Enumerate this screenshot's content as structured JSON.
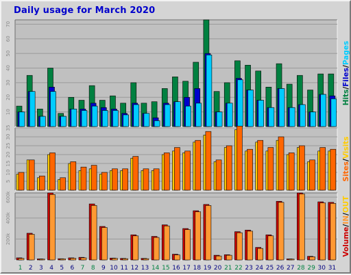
{
  "title": "Daily usage for March 2020",
  "colors": {
    "hits": "#008040",
    "files": "#0000cc",
    "pages": "#00ccff",
    "visits": "#ffcc00",
    "sites": "#ff6600",
    "volume": "#cc0000",
    "kb_in": "#ff9933",
    "kb_out": "#ffcc00",
    "weekend": "#008040",
    "weekday": "#000080",
    "title": "#0000cc",
    "panel": "#c0c0c0",
    "frame": "#d4d4d4"
  },
  "side_labels": {
    "panel1": [
      {
        "text": "Hits",
        "color": "#008040"
      },
      {
        "text": "/",
        "color": "#000000"
      },
      {
        "text": "Files",
        "color": "#0000cc"
      },
      {
        "text": "/",
        "color": "#000000"
      },
      {
        "text": "Pages",
        "color": "#00ccff"
      }
    ],
    "panel2": [
      {
        "text": "Sites",
        "color": "#ff6600"
      },
      {
        "text": "/",
        "color": "#000000"
      },
      {
        "text": "Visits",
        "color": "#ffcc00"
      }
    ],
    "panel3": [
      {
        "text": "Volume",
        "color": "#cc0000"
      },
      {
        "text": "/",
        "color": "#000000"
      },
      {
        "text": "IN",
        "color": "#ff9933"
      },
      {
        "text": "/",
        "color": "#000000"
      },
      {
        "text": "OUT",
        "color": "#ffcc00"
      }
    ]
  },
  "chart_data": [
    {
      "type": "bar",
      "categories": [
        "1",
        "2",
        "3",
        "4",
        "5",
        "6",
        "7",
        "8",
        "9",
        "10",
        "11",
        "12",
        "13",
        "14",
        "15",
        "16",
        "17",
        "18",
        "19",
        "20",
        "21",
        "22",
        "23",
        "24",
        "25",
        "26",
        "27",
        "28",
        "29",
        "30",
        "31"
      ],
      "weekend_days": [
        "1",
        "7",
        "8",
        "14",
        "15",
        "21",
        "22",
        "28",
        "29"
      ],
      "y_ticks": [
        10,
        20,
        30,
        40,
        50,
        60,
        70
      ],
      "ylim": [
        0,
        73
      ],
      "series": [
        {
          "name": "Hits",
          "values": [
            14,
            35,
            12,
            40,
            9,
            20,
            18,
            28,
            18,
            21,
            16,
            30,
            16,
            17,
            26,
            34,
            31,
            44,
            73,
            24,
            30,
            45,
            42,
            38,
            27,
            43,
            29,
            35,
            25,
            36,
            36
          ]
        },
        {
          "name": "Files",
          "values": [
            10,
            24,
            7,
            27,
            7,
            12,
            12,
            16,
            13,
            12,
            9,
            16,
            9,
            6,
            16,
            17,
            20,
            26,
            50,
            10,
            16,
            33,
            25,
            18,
            13,
            26,
            13,
            15,
            10,
            22,
            21
          ]
        },
        {
          "name": "Pages",
          "values": [
            10,
            24,
            7,
            24,
            7,
            12,
            11,
            14,
            11,
            11,
            8,
            15,
            9,
            4,
            15,
            17,
            14,
            16,
            49,
            10,
            16,
            32,
            25,
            18,
            13,
            26,
            13,
            15,
            10,
            22,
            19
          ]
        }
      ]
    },
    {
      "type": "bar",
      "categories": [
        "1",
        "2",
        "3",
        "4",
        "5",
        "6",
        "7",
        "8",
        "9",
        "10",
        "11",
        "12",
        "13",
        "14",
        "15",
        "16",
        "17",
        "18",
        "19",
        "20",
        "21",
        "22",
        "23",
        "24",
        "25",
        "26",
        "27",
        "28",
        "29",
        "30",
        "31"
      ],
      "y_ticks": [
        5,
        10,
        15,
        20,
        25,
        30,
        35
      ],
      "ylim": [
        0,
        35
      ],
      "series": [
        {
          "name": "Visits",
          "values": [
            9,
            17,
            7,
            20,
            6,
            15,
            11,
            12,
            9,
            11,
            11,
            18,
            11,
            11,
            20,
            22,
            21,
            27,
            31,
            16,
            24,
            34,
            22,
            27,
            22,
            28,
            20,
            24,
            16,
            22,
            22
          ]
        },
        {
          "name": "Sites",
          "values": [
            10,
            17,
            8,
            21,
            7,
            16,
            13,
            14,
            10,
            12,
            12,
            19,
            12,
            12,
            21,
            24,
            22,
            28,
            33,
            17,
            25,
            36,
            23,
            28,
            24,
            30,
            21,
            25,
            17,
            24,
            23
          ]
        }
      ]
    },
    {
      "type": "bar",
      "categories": [
        "1",
        "2",
        "3",
        "4",
        "5",
        "6",
        "7",
        "8",
        "9",
        "10",
        "11",
        "12",
        "13",
        "14",
        "15",
        "16",
        "17",
        "18",
        "19",
        "20",
        "21",
        "22",
        "23",
        "24",
        "25",
        "26",
        "27",
        "28",
        "29",
        "30",
        "31"
      ],
      "y_ticks": [
        200,
        400,
        600
      ],
      "y_tick_labels": [
        "200k",
        "400k",
        "600k"
      ],
      "y_unit": "k",
      "ylim": [
        0,
        640
      ],
      "series": [
        {
          "name": "Volume",
          "values": [
            20,
            255,
            10,
            640,
            12,
            20,
            25,
            535,
            320,
            18,
            15,
            240,
            15,
            225,
            335,
            55,
            300,
            470,
            530,
            45,
            50,
            270,
            285,
            120,
            240,
            560,
            10,
            640,
            35,
            555,
            550
          ]
        },
        {
          "name": "IN",
          "values": [
            15,
            245,
            8,
            625,
            10,
            16,
            20,
            520,
            310,
            15,
            12,
            230,
            12,
            215,
            325,
            48,
            290,
            460,
            520,
            38,
            45,
            260,
            275,
            110,
            230,
            550,
            8,
            630,
            30,
            545,
            540
          ]
        }
      ]
    }
  ]
}
